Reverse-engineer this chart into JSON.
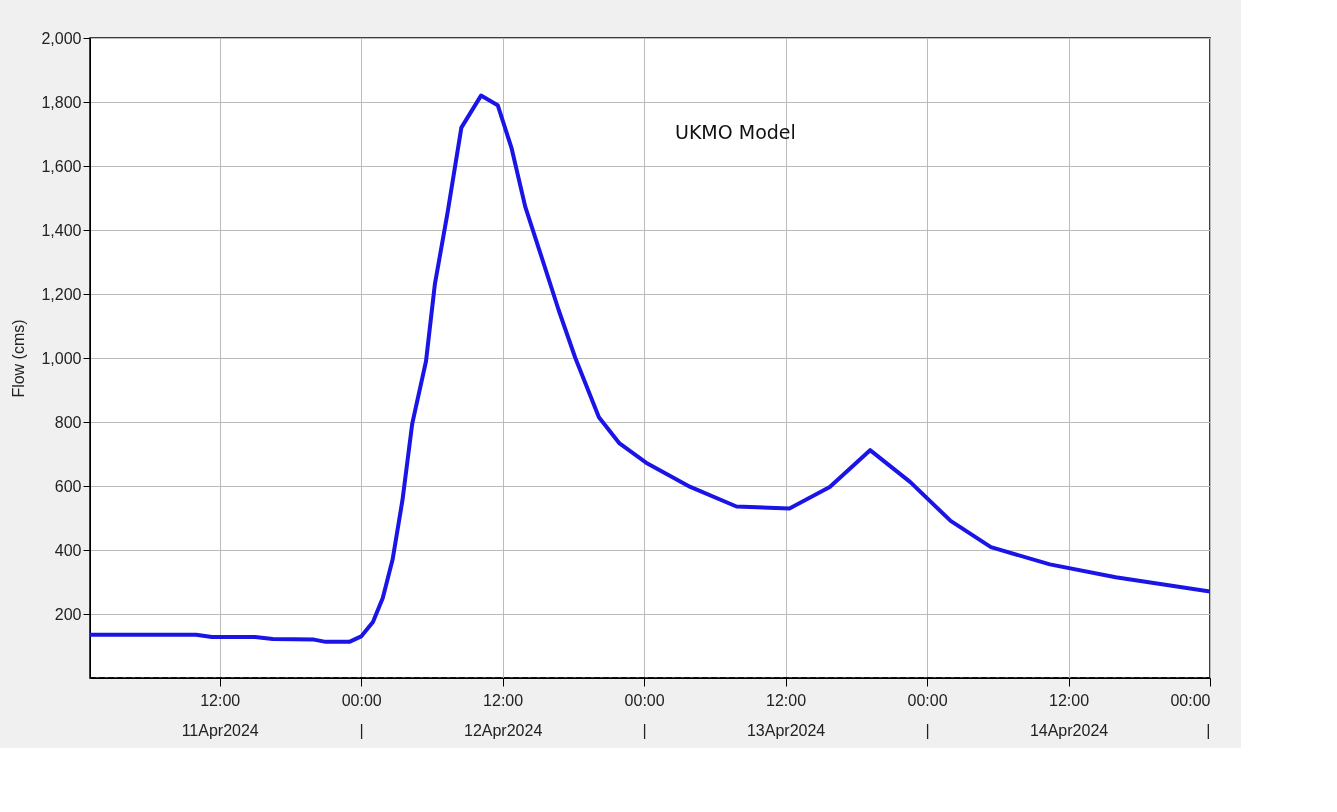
{
  "chart_data": {
    "type": "line",
    "ylabel": "Flow (cms)",
    "annotations": [
      "UKMO Model"
    ],
    "xlim": [
      "2024-04-11T01:00",
      "2024-04-15T00:00"
    ],
    "xticks": [
      {
        "value": "2024-04-11T12:00",
        "label": "12:00\n11Apr2024"
      },
      {
        "value": "2024-04-12T00:00",
        "label": "00:00\n|"
      },
      {
        "value": "2024-04-12T12:00",
        "label": "12:00\n12Apr2024"
      },
      {
        "value": "2024-04-13T00:00",
        "label": "00:00\n|"
      },
      {
        "value": "2024-04-13T12:00",
        "label": "12:00\n13Apr2024"
      },
      {
        "value": "2024-04-14T00:00",
        "label": "00:00\n|"
      },
      {
        "value": "2024-04-14T12:00",
        "label": "12:00\n14Apr2024"
      },
      {
        "value": "2024-04-15T00:00",
        "label": "00:00\n|"
      }
    ],
    "ylim": [
      0,
      2000
    ],
    "yticks": [
      200,
      400,
      600,
      800,
      {
        "value": 1000,
        "label": "1,000"
      },
      {
        "value": 1200,
        "label": "1,200"
      },
      {
        "value": 1400,
        "label": "1,400"
      },
      {
        "value": 1600,
        "label": "1,600"
      },
      {
        "value": 1800,
        "label": "1,800"
      },
      {
        "value": 2000,
        "label": "2,000"
      }
    ],
    "grid": true,
    "marker": "none",
    "series": [
      {
        "color": "#1a14e6",
        "line_style": "solid",
        "x": [
          "2024-04-11T01:00",
          "2024-04-11T10:00",
          "2024-04-11T11:20",
          "2024-04-11T15:00",
          "2024-04-11T16:30",
          "2024-04-11T20:00",
          "2024-04-11T21:00",
          "2024-04-11T23:00",
          "2024-04-12T00:00",
          "2024-04-12T01:00",
          "2024-04-12T01:50",
          "2024-04-12T02:40",
          "2024-04-12T03:30",
          "2024-04-12T04:20",
          "2024-04-12T05:30",
          "2024-04-12T06:15",
          "2024-04-12T07:20",
          "2024-04-12T08:30",
          "2024-04-12T10:10",
          "2024-04-12T11:35",
          "2024-04-12T12:45",
          "2024-04-12T13:55",
          "2024-04-12T15:20",
          "2024-04-12T16:45",
          "2024-04-12T18:10",
          "2024-04-12T20:10",
          "2024-04-12T21:55",
          "2024-04-13T00:10",
          "2024-04-13T03:55",
          "2024-04-13T07:50",
          "2024-04-13T12:20",
          "2024-04-13T15:45",
          "2024-04-13T19:10",
          "2024-04-13T22:35",
          "2024-04-14T02:00",
          "2024-04-14T05:25",
          "2024-04-14T10:25",
          "2024-04-14T16:00",
          "2024-04-15T00:00"
        ],
        "values": [
          135,
          135,
          128,
          128,
          122,
          120,
          113,
          113,
          130,
          175,
          250,
          370,
          555,
          795,
          990,
          1230,
          1455,
          1720,
          1820,
          1790,
          1657,
          1473,
          1312,
          1150,
          1000,
          815,
          733,
          673,
          597,
          536,
          530,
          597,
          712,
          612,
          491,
          409,
          355,
          315,
          270
        ]
      },
      {
        "color": "#000080",
        "line_style": "dashed",
        "x": [
          "2024-04-11T01:00",
          "2024-04-15T00:00"
        ],
        "values": [
          0,
          0
        ]
      }
    ]
  }
}
